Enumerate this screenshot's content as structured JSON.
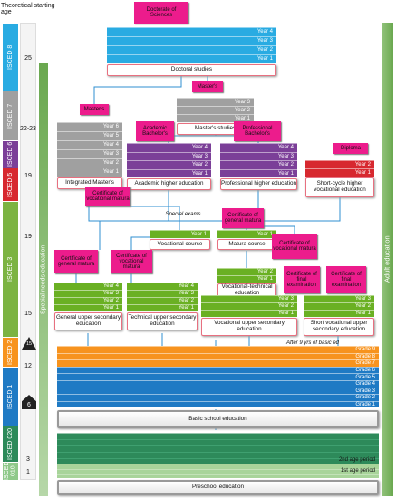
{
  "axis_title": "Theoretical starting age",
  "ages": [
    "25",
    "22-23",
    "19",
    "19",
    "15",
    "12",
    "3",
    "1"
  ],
  "icons": [
    "15",
    "6"
  ],
  "isced": [
    "ISCED 8",
    "ISCED 7",
    "ISCED 6",
    "ISCED 5",
    "ISCED 3",
    "ISCED 2",
    "ISCED 1",
    "ISCED 020",
    "ISCED 010"
  ],
  "side_bars": {
    "left": "Special needs education",
    "right": "Adult education"
  },
  "programmes": [
    {
      "award": "Doctorate of Sciences",
      "years": [
        "Year 4",
        "Year 3",
        "Year 2",
        "Year 1"
      ],
      "name": "Doctoral studies"
    },
    {
      "award": "Master's",
      "years": [
        "Year 3",
        "Year 2",
        "Year 1"
      ],
      "name": "Master's studies"
    },
    {
      "award": "Master's",
      "years": [
        "Year 6",
        "Year 5",
        "Year 4",
        "Year 3",
        "Year 2",
        "Year 1"
      ],
      "name": "Integrated Master's"
    },
    {
      "award": "Academic Bachelor's",
      "years": [
        "Year 4",
        "Year 3",
        "Year 2",
        "Year 1"
      ],
      "name": "Academic higher education"
    },
    {
      "award": "Professional Bachelor's",
      "years": [
        "Year 4",
        "Year 3",
        "Year 2",
        "Year 1"
      ],
      "name": "Professional higher education"
    },
    {
      "award": "Diploma",
      "years": [
        "Year 2",
        "Year 1"
      ],
      "name": "Short-cycle higher vocational education"
    },
    {
      "award": "Certificate of vocational matura",
      "years": [
        "Year 1"
      ],
      "name": "Vocational course"
    },
    {
      "award": "Certificate of general matura",
      "years": [
        "Year 1"
      ],
      "name": "Matura course"
    },
    {
      "award": "Certificate of vocational matura",
      "years": [
        "Year 2",
        "Year 1"
      ],
      "name": "Vocational-technical education"
    },
    {
      "award": "Certificate of general matura",
      "years": [
        "Year 4",
        "Year 3",
        "Year 2",
        "Year 1"
      ],
      "name": "General upper secondary education"
    },
    {
      "award": "Certificate of vocational matura",
      "years": [
        "Year 4",
        "Year 3",
        "Year 2",
        "Year 1"
      ],
      "name": "Technical upper secondary education"
    },
    {
      "award": "Certificate of final examination",
      "years": [
        "Year 3",
        "Year 2",
        "Year 1"
      ],
      "name": "Vocational upper secondary education"
    },
    {
      "award": "Certificate of final examination",
      "years": [
        "Year 3",
        "Year 2",
        "Year 1"
      ],
      "name": "Short vocational upper secondary education"
    }
  ],
  "notes": [
    "Special exams",
    "After 9 yrs of basic ed"
  ],
  "basic": {
    "grades": [
      "Grade 9",
      "Grade 8",
      "Grade 7",
      "Grade 6",
      "Grade 5",
      "Grade 4",
      "Grade 3",
      "Grade 2",
      "Grade 1"
    ],
    "name": "Basic school education"
  },
  "preschool": {
    "periods": [
      "2nd age period",
      "1st age period"
    ],
    "name": "Preschool education"
  }
}
